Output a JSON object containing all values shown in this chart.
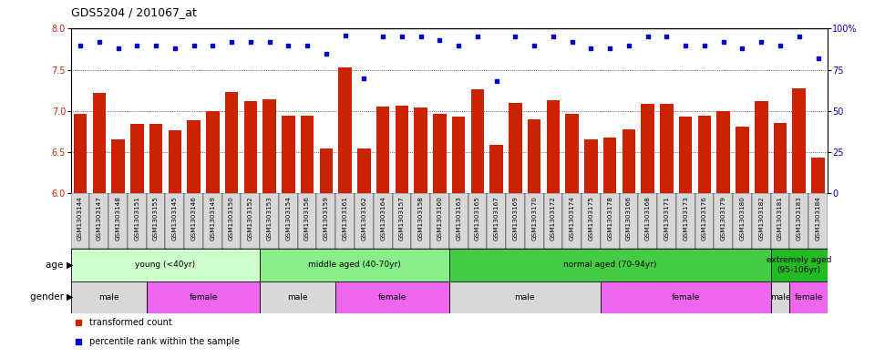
{
  "title": "GDS5204 / 201067_at",
  "samples": [
    "GSM1303144",
    "GSM1303147",
    "GSM1303148",
    "GSM1303151",
    "GSM1303155",
    "GSM1303145",
    "GSM1303146",
    "GSM1303149",
    "GSM1303150",
    "GSM1303152",
    "GSM1303153",
    "GSM1303154",
    "GSM1303156",
    "GSM1303159",
    "GSM1303161",
    "GSM1303162",
    "GSM1303164",
    "GSM1303157",
    "GSM1303158",
    "GSM1303160",
    "GSM1303163",
    "GSM1303165",
    "GSM1303167",
    "GSM1303169",
    "GSM1303170",
    "GSM1303172",
    "GSM1303174",
    "GSM1303175",
    "GSM1303178",
    "GSM1303166",
    "GSM1303168",
    "GSM1303171",
    "GSM1303173",
    "GSM1303176",
    "GSM1303179",
    "GSM1303180",
    "GSM1303182",
    "GSM1303181",
    "GSM1303183",
    "GSM1303184"
  ],
  "bar_values": [
    6.97,
    7.22,
    6.65,
    6.84,
    6.84,
    6.77,
    6.89,
    7.0,
    7.23,
    7.12,
    7.14,
    6.94,
    6.94,
    6.55,
    7.53,
    6.55,
    7.05,
    7.07,
    7.04,
    6.97,
    6.93,
    7.26,
    6.59,
    7.1,
    6.9,
    7.13,
    6.96,
    6.65,
    6.68,
    6.78,
    7.09,
    7.09,
    6.93,
    6.94,
    7.0,
    6.81,
    7.12,
    6.85,
    7.28,
    6.43
  ],
  "percentile_values": [
    90,
    92,
    88,
    90,
    90,
    88,
    90,
    90,
    92,
    92,
    92,
    90,
    90,
    85,
    96,
    70,
    95,
    95,
    95,
    93,
    90,
    95,
    68,
    95,
    90,
    95,
    92,
    88,
    88,
    90,
    95,
    95,
    90,
    90,
    92,
    88,
    92,
    90,
    95,
    82
  ],
  "ylim_left": [
    6.0,
    8.0
  ],
  "ylim_right": [
    0,
    100
  ],
  "yticks_left": [
    6.0,
    6.5,
    7.0,
    7.5,
    8.0
  ],
  "yticks_right": [
    0,
    25,
    50,
    75,
    100
  ],
  "ytick_labels_right": [
    "0",
    "25",
    "50",
    "75",
    "100%"
  ],
  "bar_color": "#cc2200",
  "percentile_color": "#0000cc",
  "xtick_bg_color": "#d8d8d8",
  "age_groups": [
    {
      "label": "young (<40yr)",
      "start": 0,
      "end": 10,
      "color": "#ccffcc"
    },
    {
      "label": "middle aged (40-70yr)",
      "start": 10,
      "end": 20,
      "color": "#88ee88"
    },
    {
      "label": "normal aged (70-94yr)",
      "start": 20,
      "end": 37,
      "color": "#44cc44"
    },
    {
      "label": "extremely aged\n(95-106yr)",
      "start": 37,
      "end": 40,
      "color": "#22bb22"
    }
  ],
  "gender_groups": [
    {
      "label": "male",
      "start": 0,
      "end": 4,
      "color": "#d8d8d8"
    },
    {
      "label": "female",
      "start": 4,
      "end": 10,
      "color": "#ee66ee"
    },
    {
      "label": "male",
      "start": 10,
      "end": 14,
      "color": "#d8d8d8"
    },
    {
      "label": "female",
      "start": 14,
      "end": 20,
      "color": "#ee66ee"
    },
    {
      "label": "male",
      "start": 20,
      "end": 28,
      "color": "#d8d8d8"
    },
    {
      "label": "female",
      "start": 28,
      "end": 37,
      "color": "#ee66ee"
    },
    {
      "label": "male",
      "start": 37,
      "end": 38,
      "color": "#d8d8d8"
    },
    {
      "label": "female",
      "start": 38,
      "end": 40,
      "color": "#ee66ee"
    }
  ],
  "legend_items": [
    {
      "label": "transformed count",
      "color": "#cc2200"
    },
    {
      "label": "percentile rank within the sample",
      "color": "#0000cc"
    }
  ],
  "n_samples": 40,
  "bar_width": 0.7,
  "fig_width": 9.71,
  "fig_height": 3.93,
  "dpi": 100
}
